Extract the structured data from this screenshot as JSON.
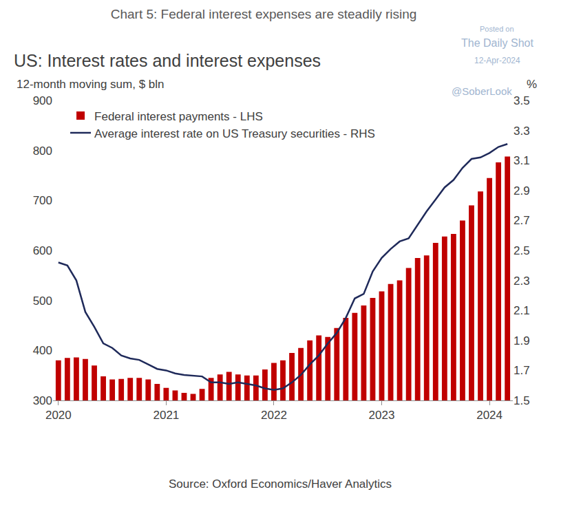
{
  "chart_data": {
    "type": "bar",
    "title": "Chart 5: Federal interest expenses are steadily rising",
    "subtitle": "US: Interest rates and interest expenses",
    "ylabel": "12-month moving sum, $ bln",
    "y2label": "%",
    "source": "Source: Oxford Economics/Haver Analytics",
    "annotations": [
      "Posted on",
      "The Daily Shot",
      "12-Apr-2024",
      "@SoberLook"
    ],
    "legend": "upper left",
    "grid": false,
    "categories": [
      "2020",
      null,
      null,
      null,
      null,
      null,
      null,
      null,
      null,
      null,
      null,
      null,
      "2021",
      null,
      null,
      null,
      null,
      null,
      null,
      null,
      null,
      null,
      null,
      null,
      "2022",
      null,
      null,
      null,
      null,
      null,
      null,
      null,
      null,
      null,
      null,
      null,
      "2023",
      null,
      null,
      null,
      null,
      null,
      null,
      null,
      null,
      null,
      null,
      null,
      "2024",
      null,
      null
    ],
    "ylim": [
      300,
      900
    ],
    "yticks": [
      300,
      400,
      500,
      600,
      700,
      800,
      900
    ],
    "y2lim": [
      1.5,
      3.5
    ],
    "y2ticks": [
      1.5,
      1.7,
      1.9,
      2.1,
      2.3,
      2.5,
      2.7,
      2.9,
      3.1,
      3.3,
      3.5
    ],
    "series": [
      {
        "name": "Federal interest payments - LHS",
        "type": "bar",
        "color": "#c00000",
        "values": [
          380,
          385,
          386,
          383,
          370,
          348,
          342,
          343,
          345,
          345,
          342,
          333,
          325,
          320,
          315,
          313,
          323,
          345,
          352,
          357,
          352,
          350,
          350,
          362,
          375,
          380,
          395,
          405,
          420,
          430,
          427,
          445,
          465,
          475,
          490,
          505,
          518,
          533,
          540,
          565,
          585,
          590,
          615,
          628,
          633,
          660,
          690,
          718,
          745,
          776,
          788
        ]
      },
      {
        "name": "Average interest rate on US Treasury securities - RHS",
        "type": "line",
        "axis": "y2",
        "color": "#1f2a5a",
        "line_style": "solid",
        "values": [
          2.42,
          2.4,
          2.3,
          2.09,
          1.99,
          1.88,
          1.85,
          1.8,
          1.78,
          1.77,
          1.74,
          1.71,
          1.7,
          1.68,
          1.67,
          1.665,
          1.66,
          1.62,
          1.62,
          1.61,
          1.62,
          1.61,
          1.6,
          1.58,
          1.57,
          1.58,
          1.62,
          1.67,
          1.74,
          1.8,
          1.88,
          1.95,
          2.05,
          2.18,
          2.21,
          2.36,
          2.45,
          2.51,
          2.56,
          2.58,
          2.67,
          2.76,
          2.84,
          2.92,
          2.97,
          3.05,
          3.11,
          3.12,
          3.15,
          3.19,
          3.21
        ]
      }
    ]
  }
}
